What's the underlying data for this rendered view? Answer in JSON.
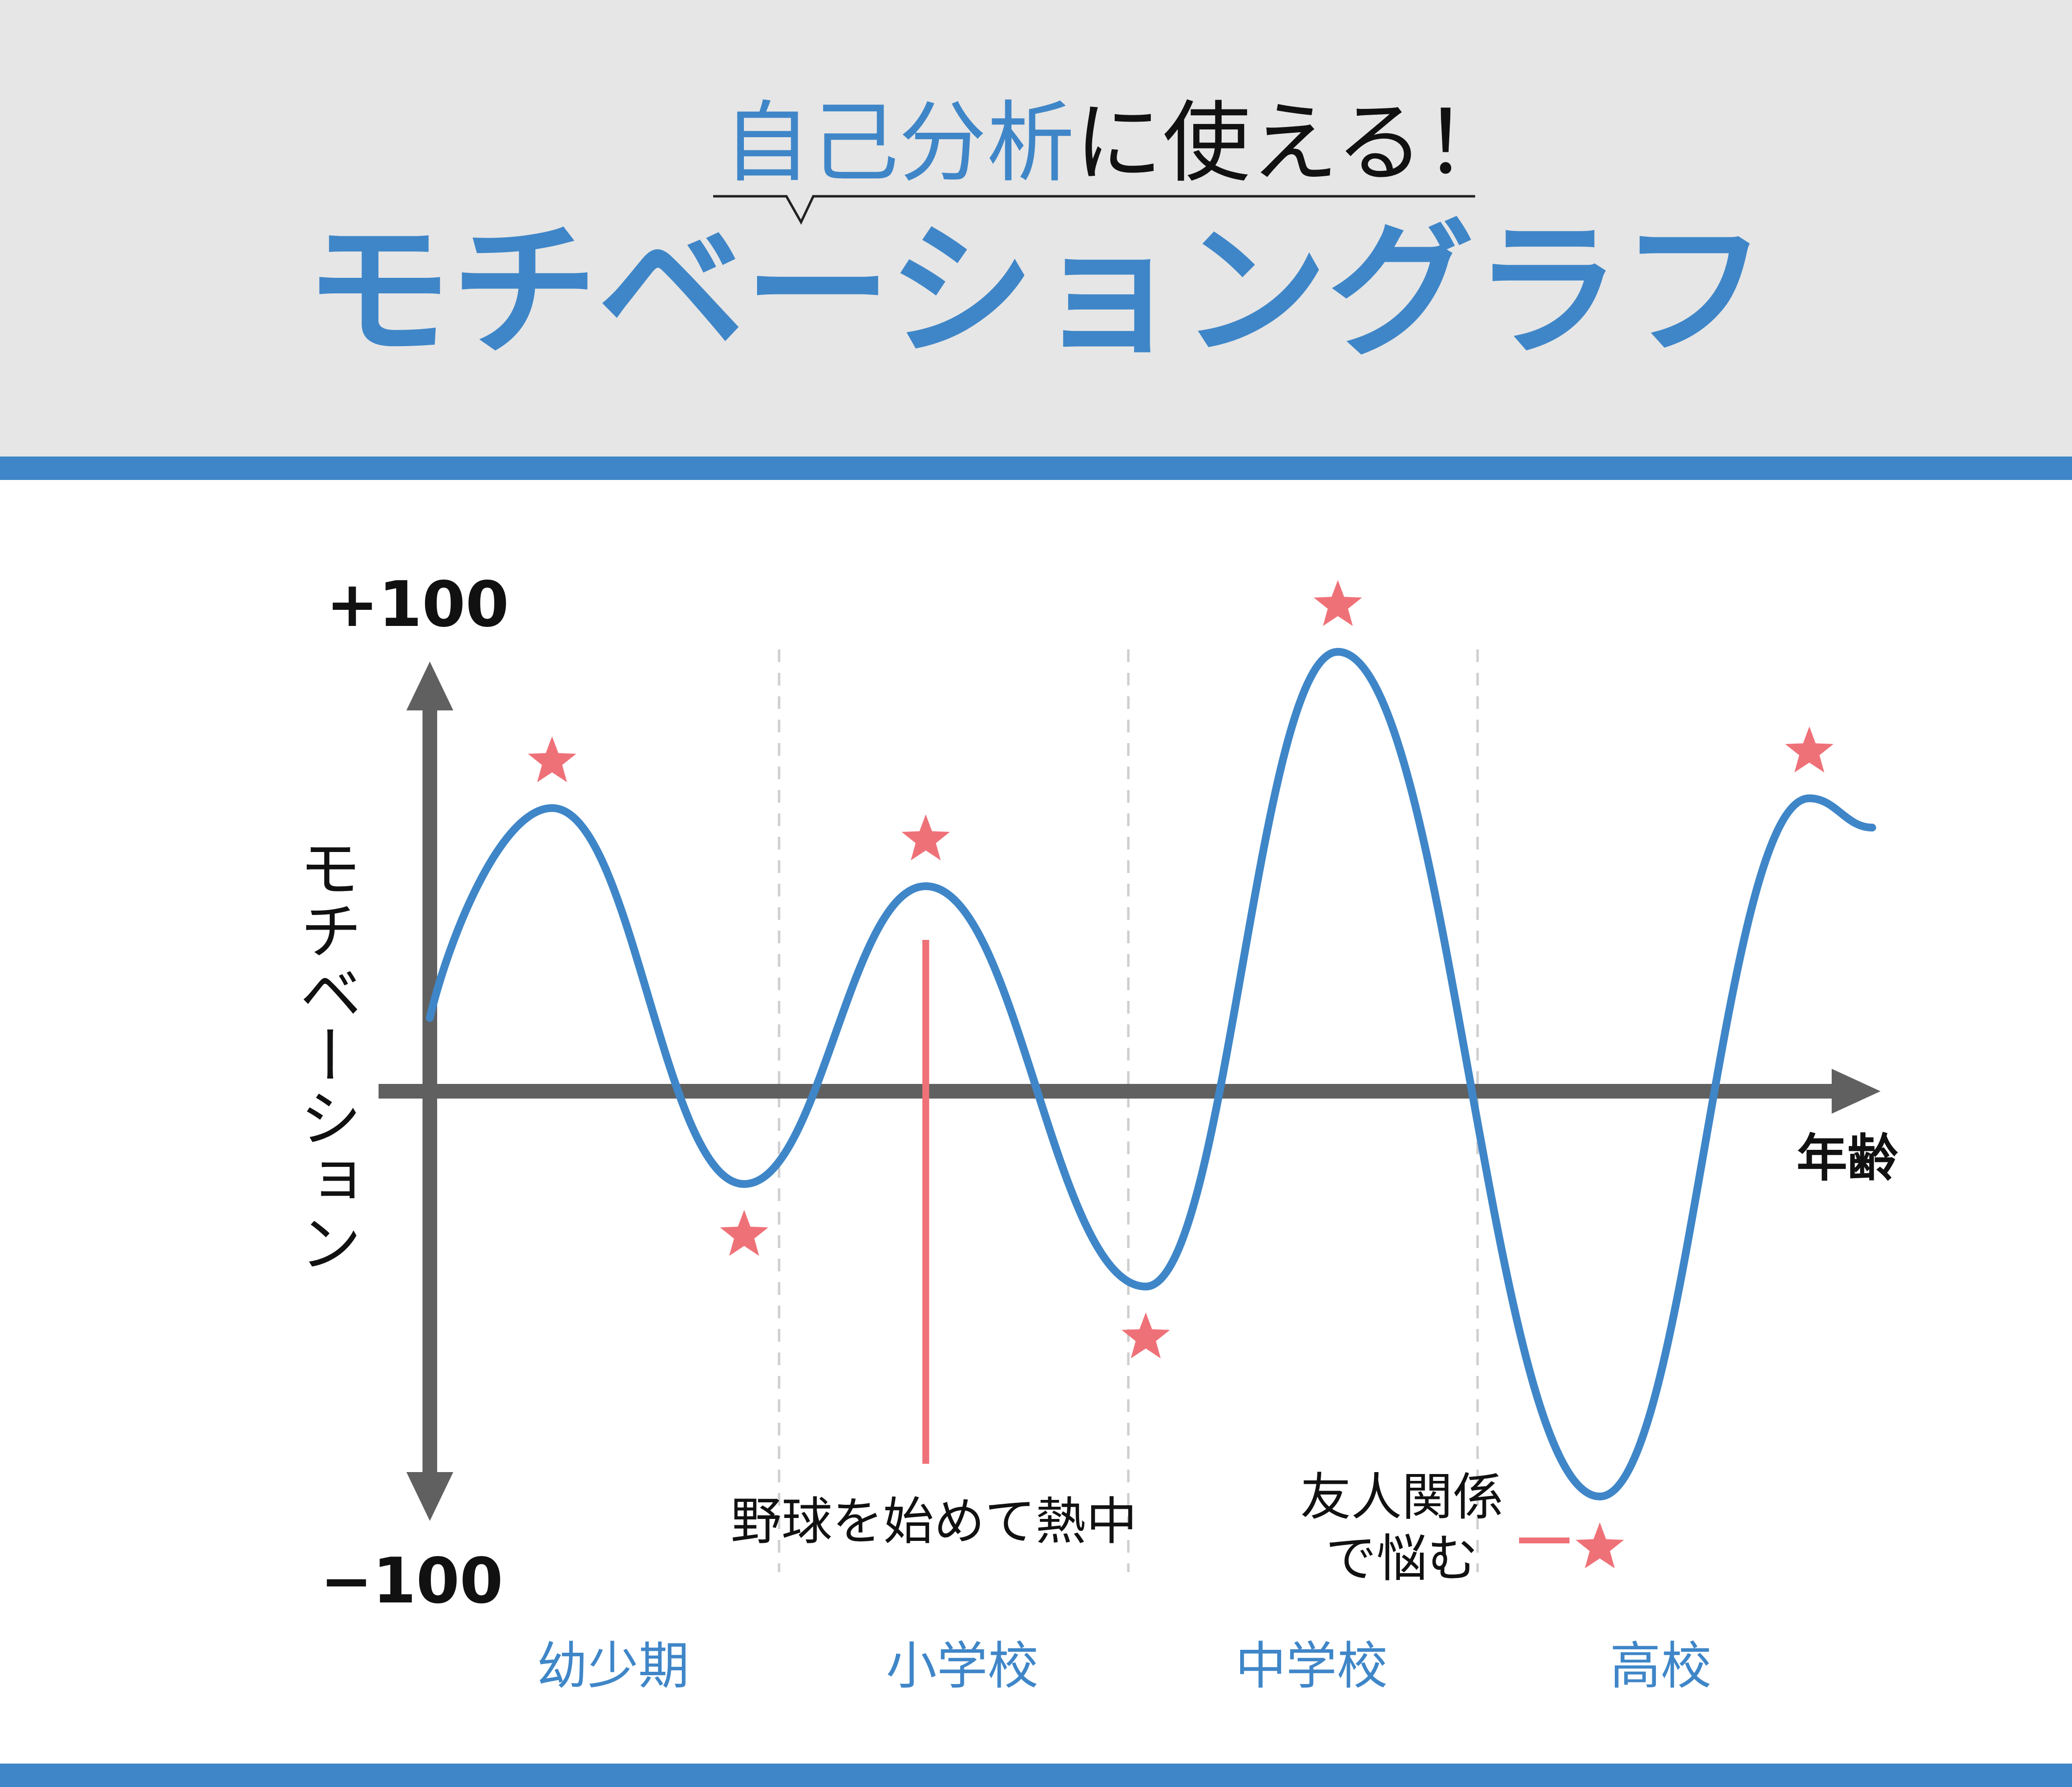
{
  "header": {
    "subtitle_part1": "自己分析",
    "subtitle_part2": "に使える！",
    "title": "モチベーショングラフ"
  },
  "colors": {
    "accent": "#3f86c8",
    "highlight": "#ef7178",
    "axis": "#606060",
    "header_bg": "#e6e6e6",
    "text": "#111111"
  },
  "chart_data": {
    "type": "line",
    "title": "モチベーショングラフ",
    "xlabel": "年齢",
    "ylabel": "モチベーション",
    "ytick_top": "+100",
    "ytick_bottom": "−100",
    "ylim": [
      -100,
      100
    ],
    "grid": false,
    "periods": [
      "幼少期",
      "小学校",
      "中学校",
      "高校"
    ],
    "curve_icon": "star-icon",
    "series": [
      {
        "values_described_by_points": true,
        "points": [
          {
            "x": 0.0,
            "y": 15
          },
          {
            "x": 0.35,
            "y": 58
          },
          {
            "x": 0.9,
            "y": -19
          },
          {
            "x": 1.42,
            "y": 42
          },
          {
            "x": 2.05,
            "y": -40
          },
          {
            "x": 2.6,
            "y": 90
          },
          {
            "x": 3.35,
            "y": -83
          },
          {
            "x": 3.95,
            "y": 60
          },
          {
            "x": 4.13,
            "y": 54
          }
        ]
      }
    ],
    "annotations": [
      {
        "text": "野球を始めて熱中"
      },
      {
        "line1": "友人関係",
        "line2": "で悩む"
      }
    ]
  }
}
